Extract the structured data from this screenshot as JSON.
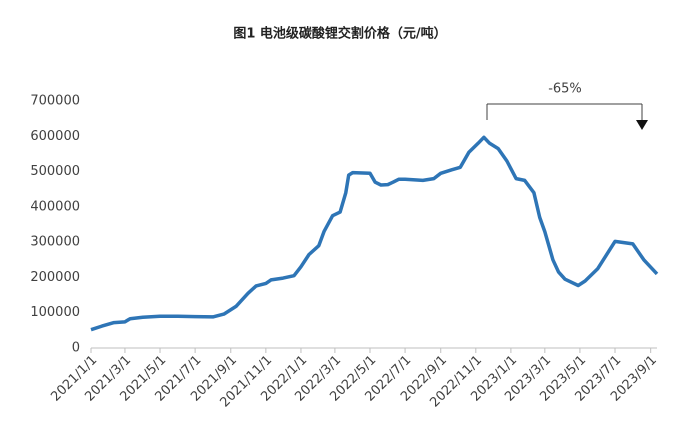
{
  "chart_data": {
    "type": "line",
    "title": "图1 电池级碳酸锂交割价格（元/吨）",
    "color": "#2e75b6",
    "ylim": [
      0,
      700000
    ],
    "yticks": [
      0,
      100000,
      200000,
      300000,
      400000,
      500000,
      600000,
      700000
    ],
    "xlim": [
      "2021/1/1",
      "2023/9/12"
    ],
    "xticks": [
      "2021/1/1",
      "2021/3/1",
      "2021/5/1",
      "2021/7/1",
      "2021/9/1",
      "2021/11/1",
      "2022/1/1",
      "2022/3/1",
      "2022/5/1",
      "2022/7/1",
      "2022/9/1",
      "2022/11/1",
      "2023/1/1",
      "2023/3/1",
      "2023/5/1",
      "2023/7/1",
      "2023/9/1"
    ],
    "annotation": "-65%",
    "x": [
      "2021/1/1",
      "2021/1/20",
      "2021/2/10",
      "2021/3/1",
      "2021/3/10",
      "2021/4/1",
      "2021/5/1",
      "2021/6/1",
      "2021/7/1",
      "2021/8/1",
      "2021/8/20",
      "2021/9/10",
      "2021/10/1",
      "2021/10/15",
      "2021/11/1",
      "2021/11/10",
      "2021/12/1",
      "2021/12/20",
      "2022/1/1",
      "2022/1/15",
      "2022/2/1",
      "2022/2/10",
      "2022/2/25",
      "2022/3/10",
      "2022/3/20",
      "2022/3/25",
      "2022/4/1",
      "2022/5/1",
      "2022/5/10",
      "2022/5/20",
      "2022/6/1",
      "2022/6/10",
      "2022/6/20",
      "2022/7/1",
      "2022/8/1",
      "2022/8/20",
      "2022/9/1",
      "2022/9/20",
      "2022/10/5",
      "2022/10/20",
      "2022/11/5",
      "2022/11/15",
      "2022/11/25",
      "2022/12/10",
      "2022/12/25",
      "2023/1/10",
      "2023/1/25",
      "2023/2/10",
      "2023/2/20",
      "2023/3/1",
      "2023/3/15",
      "2023/3/25",
      "2023/4/5",
      "2023/4/28",
      "2023/5/10",
      "2023/6/1",
      "2023/7/1",
      "2023/8/1",
      "2023/8/20",
      "2023/9/12"
    ],
    "values": [
      52000,
      62000,
      72000,
      74000,
      83000,
      87000,
      90000,
      90000,
      89000,
      88000,
      96000,
      118000,
      155000,
      176000,
      183000,
      193000,
      198000,
      205000,
      230000,
      265000,
      290000,
      330000,
      375000,
      385000,
      440000,
      490000,
      497000,
      495000,
      470000,
      462000,
      463000,
      470000,
      478000,
      478000,
      475000,
      480000,
      495000,
      505000,
      512000,
      555000,
      580000,
      597000,
      580000,
      565000,
      530000,
      480000,
      475000,
      440000,
      370000,
      330000,
      250000,
      215000,
      195000,
      177000,
      190000,
      225000,
      302000,
      295000,
      250000,
      210000
    ]
  }
}
